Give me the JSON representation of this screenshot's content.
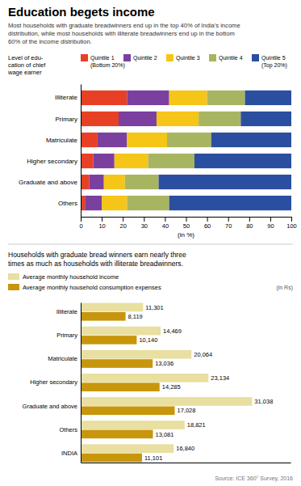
{
  "chart_data": [
    {
      "type": "bar",
      "orientation": "horizontal",
      "stacked": true,
      "title": "Education begets income",
      "subtitle": "Most households with graduate breadwinners end up in the top 40% of India's income\ndistribution, while most households with illiterate breadwinners end up in the bottom\n60% of the income distribution.",
      "annotations": [
        "Level of edu-\ncation of chief\nwage earner"
      ],
      "categories": [
        "Illiterate",
        "Primary",
        "Matriculate",
        "Higher secondary",
        "Graduate and above",
        "Others"
      ],
      "series": [
        {
          "name": "Quintile 1\n(Bottom 20%)",
          "color": "#e84025",
          "values": [
            22,
            18,
            8,
            6,
            4,
            2
          ]
        },
        {
          "name": "Quintile 2",
          "color": "#7b3fa0",
          "values": [
            20,
            18,
            14,
            10,
            7,
            8
          ]
        },
        {
          "name": "Quintile 3",
          "color": "#f5c518",
          "values": [
            18,
            20,
            19,
            16,
            10,
            12
          ]
        },
        {
          "name": "Quintile 4",
          "color": "#a8b560",
          "values": [
            18,
            20,
            21,
            22,
            16,
            20
          ]
        },
        {
          "name": "Quintile 5\n(Top 20%)",
          "color": "#2b4fa0",
          "values": [
            22,
            24,
            38,
            46,
            63,
            58
          ]
        }
      ],
      "xlabel": "(in %)",
      "xlim": [
        0,
        100
      ],
      "xticks": [
        0,
        10,
        20,
        30,
        40,
        50,
        60,
        70,
        80,
        90,
        100
      ],
      "grid": false,
      "legend": "top"
    },
    {
      "type": "bar",
      "orientation": "horizontal",
      "subtitle": "Households with graduate bread winners earn nearly three\ntimes as much as households with illiterate breadwinners.",
      "annotations": [
        "(in Rs)",
        "Source: ICE 360° Survey, 2016"
      ],
      "categories": [
        "Illiterate",
        "Primary",
        "Matriculate",
        "Higher secondary",
        "Graduate and above",
        "Others",
        "INDIA"
      ],
      "series": [
        {
          "name": "Average monthly household income",
          "color": "#e8dfa0",
          "values": [
            11301,
            14469,
            20064,
            23134,
            31038,
            18821,
            16840
          ],
          "value_labels": [
            "11,301",
            "14,469",
            "20,064",
            "23,134",
            "31,038",
            "18,821",
            "16,840"
          ]
        },
        {
          "name": "Average monthly household consumption  expenses",
          "color": "#c8960c",
          "values": [
            8119,
            10140,
            13036,
            14285,
            17028,
            13081,
            11101
          ],
          "value_labels": [
            "8,119",
            "10,140",
            "13,036",
            "14,285",
            "17,028",
            "13,081",
            "11,101"
          ]
        }
      ],
      "xlim": [
        0,
        38000
      ],
      "data_labels": true,
      "tick_labels": "y",
      "grid": false,
      "legend": "top-left"
    }
  ]
}
